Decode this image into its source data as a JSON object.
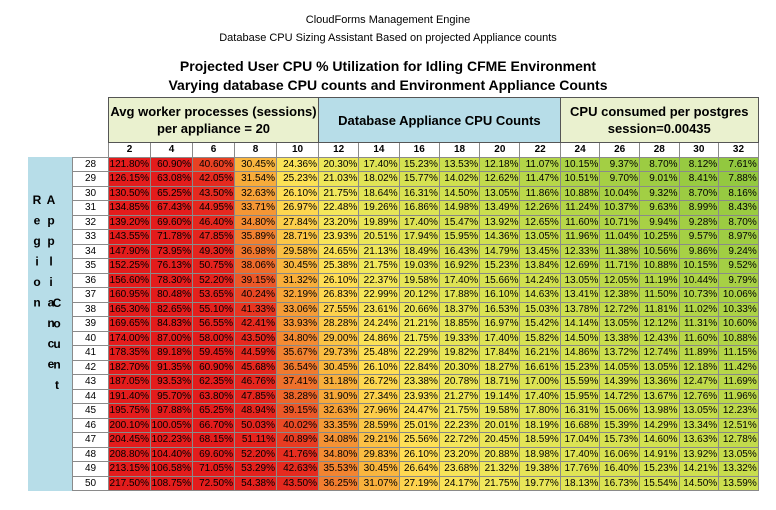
{
  "header": {
    "line1": "CloudForms Management Engine",
    "line2": "Database CPU Sizing Assistant Based on projected Appliance counts"
  },
  "title": {
    "line1": "Projected User CPU % Utilization for Idling CFME Environment",
    "line2": "Varying database CPU counts and Environment  Appliance Counts"
  },
  "table": {
    "group_headers": [
      {
        "lines": [
          "Avg worker processes (sessions)",
          "per appliance = 20"
        ]
      },
      {
        "lines": [
          "Database Appliance CPU Counts"
        ]
      },
      {
        "lines": [
          "CPU consumed per postgres",
          "session=0.00435"
        ]
      }
    ],
    "row_axis_label": "Region Appliance",
    "row_axis_label_2": "Count",
    "columns": [
      "2",
      "4",
      "6",
      "8",
      "10",
      "12",
      "14",
      "16",
      "18",
      "20",
      "22",
      "24",
      "26",
      "28",
      "30",
      "32"
    ],
    "rows": [
      {
        "label": "28",
        "cells": [
          "121.80%",
          "60.90%",
          "40.60%",
          "30.45%",
          "24.36%",
          "20.30%",
          "17.40%",
          "15.23%",
          "13.53%",
          "12.18%",
          "11.07%",
          "10.15%",
          "9.37%",
          "8.70%",
          "8.12%",
          "7.61%"
        ]
      },
      {
        "label": "29",
        "cells": [
          "126.15%",
          "63.08%",
          "42.05%",
          "31.54%",
          "25.23%",
          "21.03%",
          "18.02%",
          "15.77%",
          "14.02%",
          "12.62%",
          "11.47%",
          "10.51%",
          "9.70%",
          "9.01%",
          "8.41%",
          "7.88%"
        ]
      },
      {
        "label": "30",
        "cells": [
          "130.50%",
          "65.25%",
          "43.50%",
          "32.63%",
          "26.10%",
          "21.75%",
          "18.64%",
          "16.31%",
          "14.50%",
          "13.05%",
          "11.86%",
          "10.88%",
          "10.04%",
          "9.32%",
          "8.70%",
          "8.16%"
        ]
      },
      {
        "label": "31",
        "cells": [
          "134.85%",
          "67.43%",
          "44.95%",
          "33.71%",
          "26.97%",
          "22.48%",
          "19.26%",
          "16.86%",
          "14.98%",
          "13.49%",
          "12.26%",
          "11.24%",
          "10.37%",
          "9.63%",
          "8.99%",
          "8.43%"
        ]
      },
      {
        "label": "32",
        "cells": [
          "139.20%",
          "69.60%",
          "46.40%",
          "34.80%",
          "27.84%",
          "23.20%",
          "19.89%",
          "17.40%",
          "15.47%",
          "13.92%",
          "12.65%",
          "11.60%",
          "10.71%",
          "9.94%",
          "9.28%",
          "8.70%"
        ]
      },
      {
        "label": "33",
        "cells": [
          "143.55%",
          "71.78%",
          "47.85%",
          "35.89%",
          "28.71%",
          "23.93%",
          "20.51%",
          "17.94%",
          "15.95%",
          "14.36%",
          "13.05%",
          "11.96%",
          "11.04%",
          "10.25%",
          "9.57%",
          "8.97%"
        ]
      },
      {
        "label": "34",
        "cells": [
          "147.90%",
          "73.95%",
          "49.30%",
          "36.98%",
          "29.58%",
          "24.65%",
          "21.13%",
          "18.49%",
          "16.43%",
          "14.79%",
          "13.45%",
          "12.33%",
          "11.38%",
          "10.56%",
          "9.86%",
          "9.24%"
        ]
      },
      {
        "label": "35",
        "cells": [
          "152.25%",
          "76.13%",
          "50.75%",
          "38.06%",
          "30.45%",
          "25.38%",
          "21.75%",
          "19.03%",
          "16.92%",
          "15.23%",
          "13.84%",
          "12.69%",
          "11.71%",
          "10.88%",
          "10.15%",
          "9.52%"
        ]
      },
      {
        "label": "36",
        "cells": [
          "156.60%",
          "78.30%",
          "52.20%",
          "39.15%",
          "31.32%",
          "26.10%",
          "22.37%",
          "19.58%",
          "17.40%",
          "15.66%",
          "14.24%",
          "13.05%",
          "12.05%",
          "11.19%",
          "10.44%",
          "9.79%"
        ]
      },
      {
        "label": "37",
        "cells": [
          "160.95%",
          "80.48%",
          "53.65%",
          "40.24%",
          "32.19%",
          "26.83%",
          "22.99%",
          "20.12%",
          "17.88%",
          "16.10%",
          "14.63%",
          "13.41%",
          "12.38%",
          "11.50%",
          "10.73%",
          "10.06%"
        ]
      },
      {
        "label": "38",
        "cells": [
          "165.30%",
          "82.65%",
          "55.10%",
          "41.33%",
          "33.06%",
          "27.55%",
          "23.61%",
          "20.66%",
          "18.37%",
          "16.53%",
          "15.03%",
          "13.78%",
          "12.72%",
          "11.81%",
          "11.02%",
          "10.33%"
        ]
      },
      {
        "label": "39",
        "cells": [
          "169.65%",
          "84.83%",
          "56.55%",
          "42.41%",
          "33.93%",
          "28.28%",
          "24.24%",
          "21.21%",
          "18.85%",
          "16.97%",
          "15.42%",
          "14.14%",
          "13.05%",
          "12.12%",
          "11.31%",
          "10.60%"
        ]
      },
      {
        "label": "40",
        "cells": [
          "174.00%",
          "87.00%",
          "58.00%",
          "43.50%",
          "34.80%",
          "29.00%",
          "24.86%",
          "21.75%",
          "19.33%",
          "17.40%",
          "15.82%",
          "14.50%",
          "13.38%",
          "12.43%",
          "11.60%",
          "10.88%"
        ]
      },
      {
        "label": "41",
        "cells": [
          "178.35%",
          "89.18%",
          "59.45%",
          "44.59%",
          "35.67%",
          "29.73%",
          "25.48%",
          "22.29%",
          "19.82%",
          "17.84%",
          "16.21%",
          "14.86%",
          "13.72%",
          "12.74%",
          "11.89%",
          "11.15%"
        ]
      },
      {
        "label": "42",
        "cells": [
          "182.70%",
          "91.35%",
          "60.90%",
          "45.68%",
          "36.54%",
          "30.45%",
          "26.10%",
          "22.84%",
          "20.30%",
          "18.27%",
          "16.61%",
          "15.23%",
          "14.05%",
          "13.05%",
          "12.18%",
          "11.42%"
        ]
      },
      {
        "label": "43",
        "cells": [
          "187.05%",
          "93.53%",
          "62.35%",
          "46.76%",
          "37.41%",
          "31.18%",
          "26.72%",
          "23.38%",
          "20.78%",
          "18.71%",
          "17.00%",
          "15.59%",
          "14.39%",
          "13.36%",
          "12.47%",
          "11.69%"
        ]
      },
      {
        "label": "44",
        "cells": [
          "191.40%",
          "95.70%",
          "63.80%",
          "47.85%",
          "38.28%",
          "31.90%",
          "27.34%",
          "23.93%",
          "21.27%",
          "19.14%",
          "17.40%",
          "15.95%",
          "14.72%",
          "13.67%",
          "12.76%",
          "11.96%"
        ]
      },
      {
        "label": "45",
        "cells": [
          "195.75%",
          "97.88%",
          "65.25%",
          "48.94%",
          "39.15%",
          "32.63%",
          "27.96%",
          "24.47%",
          "21.75%",
          "19.58%",
          "17.80%",
          "16.31%",
          "15.06%",
          "13.98%",
          "13.05%",
          "12.23%"
        ]
      },
      {
        "label": "46",
        "cells": [
          "200.10%",
          "100.05%",
          "66.70%",
          "50.03%",
          "40.02%",
          "33.35%",
          "28.59%",
          "25.01%",
          "22.23%",
          "20.01%",
          "18.19%",
          "16.68%",
          "15.39%",
          "14.29%",
          "13.34%",
          "12.51%"
        ]
      },
      {
        "label": "47",
        "cells": [
          "204.45%",
          "102.23%",
          "68.15%",
          "51.11%",
          "40.89%",
          "34.08%",
          "29.21%",
          "25.56%",
          "22.72%",
          "20.45%",
          "18.59%",
          "17.04%",
          "15.73%",
          "14.60%",
          "13.63%",
          "12.78%"
        ]
      },
      {
        "label": "48",
        "cells": [
          "208.80%",
          "104.40%",
          "69.60%",
          "52.20%",
          "41.76%",
          "34.80%",
          "29.83%",
          "26.10%",
          "23.20%",
          "20.88%",
          "18.98%",
          "17.40%",
          "16.06%",
          "14.91%",
          "13.92%",
          "13.05%"
        ]
      },
      {
        "label": "49",
        "cells": [
          "213.15%",
          "106.58%",
          "71.05%",
          "53.29%",
          "42.63%",
          "35.53%",
          "30.45%",
          "26.64%",
          "23.68%",
          "21.32%",
          "19.38%",
          "17.76%",
          "16.40%",
          "15.23%",
          "14.21%",
          "13.32%"
        ]
      },
      {
        "label": "50",
        "cells": [
          "217.50%",
          "108.75%",
          "72.50%",
          "54.38%",
          "43.50%",
          "36.25%",
          "31.07%",
          "27.19%",
          "24.17%",
          "21.75%",
          "19.77%",
          "18.13%",
          "16.73%",
          "15.54%",
          "14.50%",
          "13.59%"
        ]
      }
    ]
  }
}
